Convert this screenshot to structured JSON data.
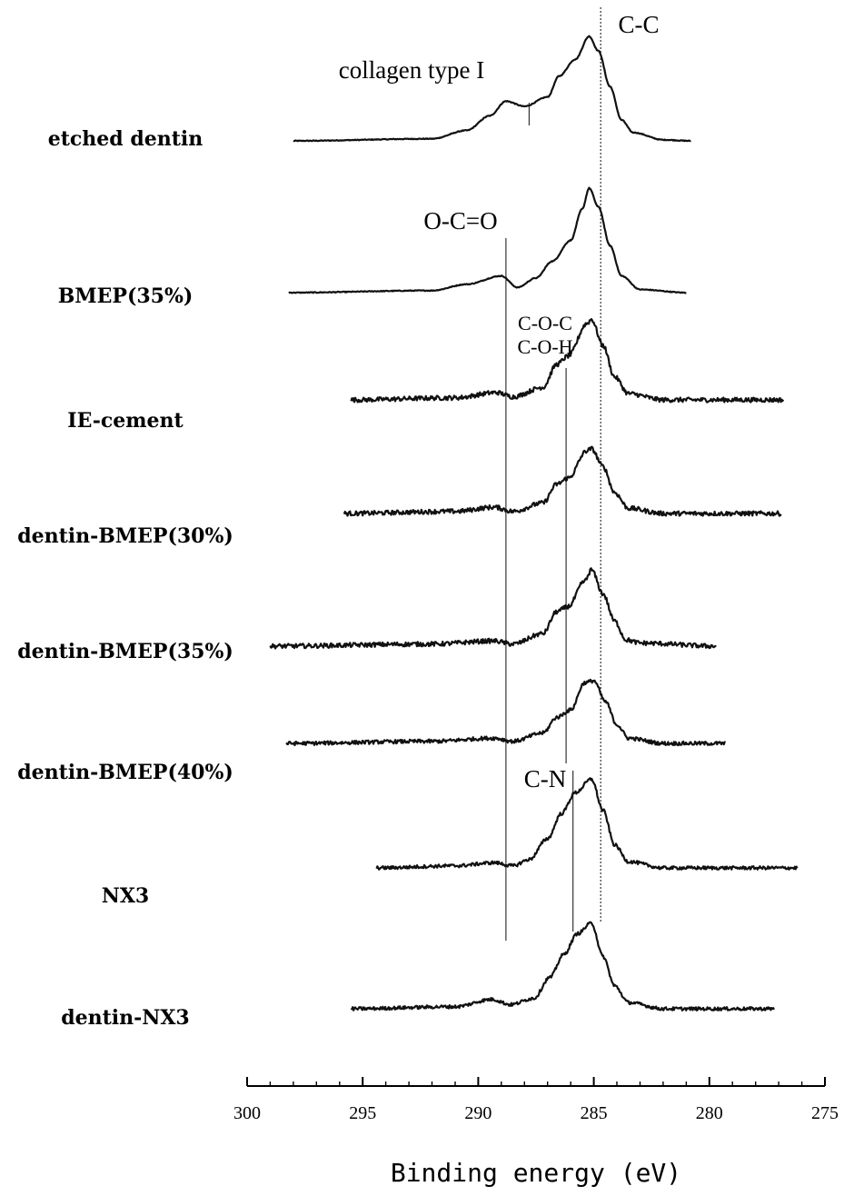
{
  "chart_data": {
    "type": "line",
    "title": "",
    "xlabel": "Binding energy (eV)",
    "ylabel": "",
    "xlim": [
      300,
      275
    ],
    "x_reversed": true,
    "xticks": [
      "300",
      "295",
      "290",
      "285",
      "280",
      "275"
    ],
    "y_units": "arbitrary (stacked, offset intensity)",
    "grid": false,
    "series": [
      {
        "name": "etched dentin",
        "x_range": [
          298,
          280.8
        ],
        "points": [
          [
            298,
            0
          ],
          [
            292,
            0.02
          ],
          [
            290.5,
            0.1
          ],
          [
            289.5,
            0.24
          ],
          [
            288.8,
            0.38
          ],
          [
            288,
            0.33
          ],
          [
            287,
            0.42
          ],
          [
            286.5,
            0.62
          ],
          [
            285.8,
            0.78
          ],
          [
            285.2,
            1.0
          ],
          [
            284.8,
            0.86
          ],
          [
            284.3,
            0.52
          ],
          [
            283.8,
            0.2
          ],
          [
            283.3,
            0.08
          ],
          [
            282,
            0.01
          ],
          [
            280.8,
            0
          ]
        ],
        "noise": 0.004
      },
      {
        "name": "BMEP(35%)",
        "x_range": [
          298.2,
          281
        ],
        "points": [
          [
            298.2,
            0
          ],
          [
            292,
            0.02
          ],
          [
            290.5,
            0.08
          ],
          [
            289,
            0.16
          ],
          [
            288.3,
            0.05
          ],
          [
            287.5,
            0.14
          ],
          [
            286.8,
            0.3
          ],
          [
            286,
            0.5
          ],
          [
            285.5,
            0.8
          ],
          [
            285.2,
            1.0
          ],
          [
            284.8,
            0.82
          ],
          [
            284.3,
            0.45
          ],
          [
            283.8,
            0.16
          ],
          [
            283,
            0.03
          ],
          [
            281,
            0
          ]
        ],
        "noise": 0.004
      },
      {
        "name": "IE-cement",
        "x_range": [
          295.5,
          276.8
        ],
        "points": [
          [
            295.5,
            0
          ],
          [
            291,
            0.02
          ],
          [
            289.2,
            0.07
          ],
          [
            288.5,
            0.03
          ],
          [
            287.2,
            0.12
          ],
          [
            286.6,
            0.34
          ],
          [
            286.1,
            0.42
          ],
          [
            285.3,
            0.73
          ],
          [
            285.1,
            0.77
          ],
          [
            284.6,
            0.52
          ],
          [
            284.1,
            0.22
          ],
          [
            283.5,
            0.06
          ],
          [
            282,
            0
          ],
          [
            276.8,
            0
          ]
        ],
        "noise": 0.022
      },
      {
        "name": "dentin-BMEP(30%)",
        "x_range": [
          295.8,
          276.9
        ],
        "points": [
          [
            295.8,
            0
          ],
          [
            291,
            0.02
          ],
          [
            289.3,
            0.06
          ],
          [
            288.5,
            0.02
          ],
          [
            287.2,
            0.1
          ],
          [
            286.6,
            0.28
          ],
          [
            286.1,
            0.34
          ],
          [
            285.3,
            0.6
          ],
          [
            285.1,
            0.62
          ],
          [
            284.6,
            0.45
          ],
          [
            284.1,
            0.2
          ],
          [
            283.5,
            0.05
          ],
          [
            282,
            0
          ],
          [
            276.9,
            0
          ]
        ],
        "noise": 0.022
      },
      {
        "name": "dentin-BMEP(35%)",
        "x_range": [
          299,
          279.7
        ],
        "points": [
          [
            299,
            0
          ],
          [
            292,
            0.02
          ],
          [
            289.3,
            0.05
          ],
          [
            288.5,
            0.02
          ],
          [
            287.2,
            0.12
          ],
          [
            286.6,
            0.33
          ],
          [
            286.1,
            0.38
          ],
          [
            285.4,
            0.62
          ],
          [
            285.1,
            0.73
          ],
          [
            284.6,
            0.5
          ],
          [
            284.1,
            0.24
          ],
          [
            283.6,
            0.06
          ],
          [
            283,
            0.03
          ],
          [
            279.7,
            0
          ]
        ],
        "noise": 0.022
      },
      {
        "name": "dentin-BMEP(40%)",
        "x_range": [
          298.3,
          279.3
        ],
        "points": [
          [
            298.3,
            0
          ],
          [
            292,
            0.02
          ],
          [
            289.3,
            0.05
          ],
          [
            288.5,
            0.02
          ],
          [
            287.2,
            0.1
          ],
          [
            286.6,
            0.25
          ],
          [
            286,
            0.32
          ],
          [
            285.4,
            0.58
          ],
          [
            285,
            0.6
          ],
          [
            284.5,
            0.4
          ],
          [
            284,
            0.18
          ],
          [
            283.5,
            0.05
          ],
          [
            282,
            0
          ],
          [
            279.3,
            0
          ]
        ],
        "noise": 0.018
      },
      {
        "name": "NX3",
        "x_range": [
          294.4,
          276.2
        ],
        "points": [
          [
            294.4,
            0
          ],
          [
            291,
            0.02
          ],
          [
            289.3,
            0.05
          ],
          [
            288.5,
            0.02
          ],
          [
            287.8,
            0.08
          ],
          [
            287,
            0.28
          ],
          [
            286.4,
            0.52
          ],
          [
            285.8,
            0.72
          ],
          [
            285.1,
            0.85
          ],
          [
            284.6,
            0.55
          ],
          [
            284.1,
            0.22
          ],
          [
            283.5,
            0.06
          ],
          [
            282,
            0
          ],
          [
            276.2,
            0
          ]
        ],
        "noise": 0.016
      },
      {
        "name": "dentin-NX3",
        "x_range": [
          295.5,
          277.2
        ],
        "points": [
          [
            295.5,
            0
          ],
          [
            291,
            0.02
          ],
          [
            289.4,
            0.09
          ],
          [
            288.6,
            0.04
          ],
          [
            287.6,
            0.1
          ],
          [
            286.9,
            0.3
          ],
          [
            286.3,
            0.52
          ],
          [
            285.7,
            0.72
          ],
          [
            285.1,
            0.82
          ],
          [
            284.6,
            0.5
          ],
          [
            284.1,
            0.22
          ],
          [
            283.5,
            0.06
          ],
          [
            282,
            0
          ],
          [
            277.2,
            0
          ]
        ],
        "noise": 0.016
      }
    ],
    "reference_lines": [
      {
        "x": 284.7,
        "label": "C-C",
        "style": "dotted",
        "from_series": 0,
        "to_series": 7
      },
      {
        "x": 288.8,
        "label": "O-C=O",
        "style": "solid",
        "from_series": 1,
        "to_series": 7
      },
      {
        "x": 286.2,
        "label": "C-O-C\nC-O-H",
        "style": "solid",
        "from_series": 2,
        "to_series": 5
      },
      {
        "x": 285.9,
        "label": "C-N",
        "style": "solid",
        "from_series": 6,
        "to_series": 7
      },
      {
        "x": 287.8,
        "label": "collagen type I",
        "style": "solid",
        "from_series": 0,
        "to_series": 0
      }
    ]
  }
}
